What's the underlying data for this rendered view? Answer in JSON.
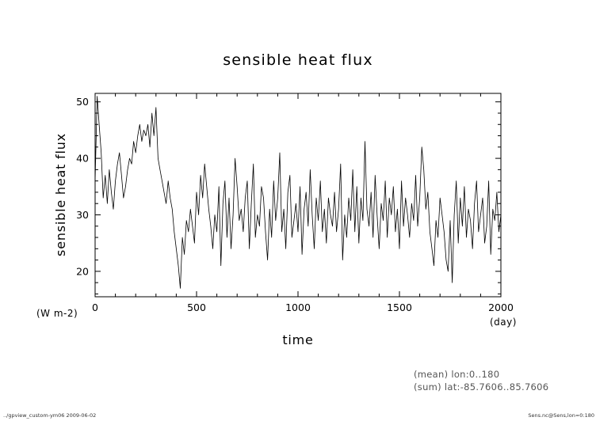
{
  "chart_data": {
    "type": "line",
    "title": "sensible heat flux",
    "xlabel": "time",
    "ylabel": "sensible heat flux",
    "x_unit": "(day)",
    "y_unit": "(W m-2)",
    "xlim": [
      0,
      2000
    ],
    "ylim": [
      15.5,
      51.5
    ],
    "x_ticks": [
      0,
      500,
      1000,
      1500,
      2000
    ],
    "y_ticks": [
      20,
      30,
      40,
      50
    ],
    "x_tick_labels": [
      "0",
      "500",
      "1000",
      "1500",
      "2000"
    ],
    "y_tick_labels": [
      "20",
      "30",
      "40",
      "50"
    ],
    "grid": false,
    "series": [
      {
        "color": "#000000",
        "x": [
          0,
          10,
          20,
          30,
          40,
          50,
          60,
          70,
          80,
          90,
          100,
          110,
          120,
          130,
          140,
          150,
          160,
          170,
          180,
          190,
          200,
          210,
          220,
          230,
          240,
          250,
          260,
          270,
          280,
          290,
          300,
          310,
          320,
          330,
          340,
          350,
          360,
          370,
          380,
          390,
          400,
          410,
          420,
          430,
          440,
          450,
          460,
          470,
          480,
          490,
          500,
          510,
          520,
          530,
          540,
          550,
          560,
          570,
          580,
          590,
          600,
          610,
          620,
          630,
          640,
          650,
          660,
          670,
          680,
          690,
          700,
          710,
          720,
          730,
          740,
          750,
          760,
          770,
          780,
          790,
          800,
          810,
          820,
          830,
          840,
          850,
          860,
          870,
          880,
          890,
          900,
          910,
          920,
          930,
          940,
          950,
          960,
          970,
          980,
          990,
          1000,
          1010,
          1020,
          1030,
          1040,
          1050,
          1060,
          1070,
          1080,
          1090,
          1100,
          1110,
          1120,
          1130,
          1140,
          1150,
          1160,
          1170,
          1180,
          1190,
          1200,
          1210,
          1220,
          1230,
          1240,
          1250,
          1260,
          1270,
          1280,
          1290,
          1300,
          1310,
          1320,
          1330,
          1340,
          1350,
          1360,
          1370,
          1380,
          1390,
          1400,
          1410,
          1420,
          1430,
          1440,
          1450,
          1460,
          1470,
          1480,
          1490,
          1500,
          1510,
          1520,
          1530,
          1540,
          1550,
          1560,
          1570,
          1580,
          1590,
          1600,
          1610,
          1620,
          1630,
          1640,
          1650,
          1660,
          1670,
          1680,
          1690,
          1700,
          1710,
          1720,
          1730,
          1740,
          1750,
          1760,
          1770,
          1780,
          1790,
          1800,
          1810,
          1820,
          1830,
          1840,
          1850,
          1860,
          1870,
          1880,
          1890,
          1900,
          1910,
          1920,
          1930,
          1940,
          1950,
          1960,
          1970,
          1980,
          1990,
          2000
        ],
        "values": [
          36,
          51,
          46,
          41,
          33,
          37,
          32,
          38,
          34,
          31,
          36,
          39,
          41,
          37,
          33,
          35,
          38,
          40,
          39,
          43,
          41,
          44,
          46,
          43,
          45,
          44,
          46,
          42,
          48,
          44,
          49,
          40,
          38,
          36,
          34,
          32,
          36,
          33,
          31,
          27,
          24,
          21,
          17,
          26,
          23,
          29,
          27,
          31,
          28,
          25,
          34,
          30,
          37,
          33,
          39,
          35,
          31,
          28,
          24,
          30,
          27,
          35,
          21,
          32,
          36,
          26,
          33,
          24,
          30,
          40,
          35,
          29,
          31,
          27,
          33,
          36,
          24,
          32,
          39,
          26,
          30,
          28,
          35,
          33,
          27,
          22,
          31,
          26,
          36,
          29,
          33,
          41,
          27,
          31,
          24,
          34,
          37,
          26,
          29,
          32,
          27,
          35,
          23,
          31,
          34,
          28,
          38,
          30,
          24,
          33,
          29,
          36,
          27,
          31,
          25,
          33,
          30,
          28,
          34,
          27,
          31,
          39,
          22,
          30,
          26,
          33,
          29,
          38,
          27,
          35,
          25,
          33,
          29,
          43,
          31,
          28,
          34,
          26,
          37,
          30,
          24,
          32,
          29,
          36,
          26,
          33,
          30,
          35,
          27,
          31,
          24,
          36,
          28,
          33,
          30,
          26,
          32,
          29,
          37,
          28,
          33,
          42,
          38,
          31,
          34,
          27,
          24,
          21,
          29,
          26,
          33,
          30,
          27,
          22,
          20,
          29,
          18,
          30,
          36,
          25,
          33,
          28,
          35,
          26,
          31,
          29,
          24,
          32,
          36,
          27,
          30,
          33,
          25,
          28,
          36,
          23,
          31,
          29,
          34,
          27,
          30
        ]
      }
    ]
  },
  "annotations": {
    "note_line1": "(mean) lon:0..180",
    "note_line2": "(sum) lat:-85.7606..85.7606",
    "footer_left": "../gpview_custom-ym06  2009-06-02",
    "footer_right": "Sens.nc@Sens,lon=0:180"
  }
}
